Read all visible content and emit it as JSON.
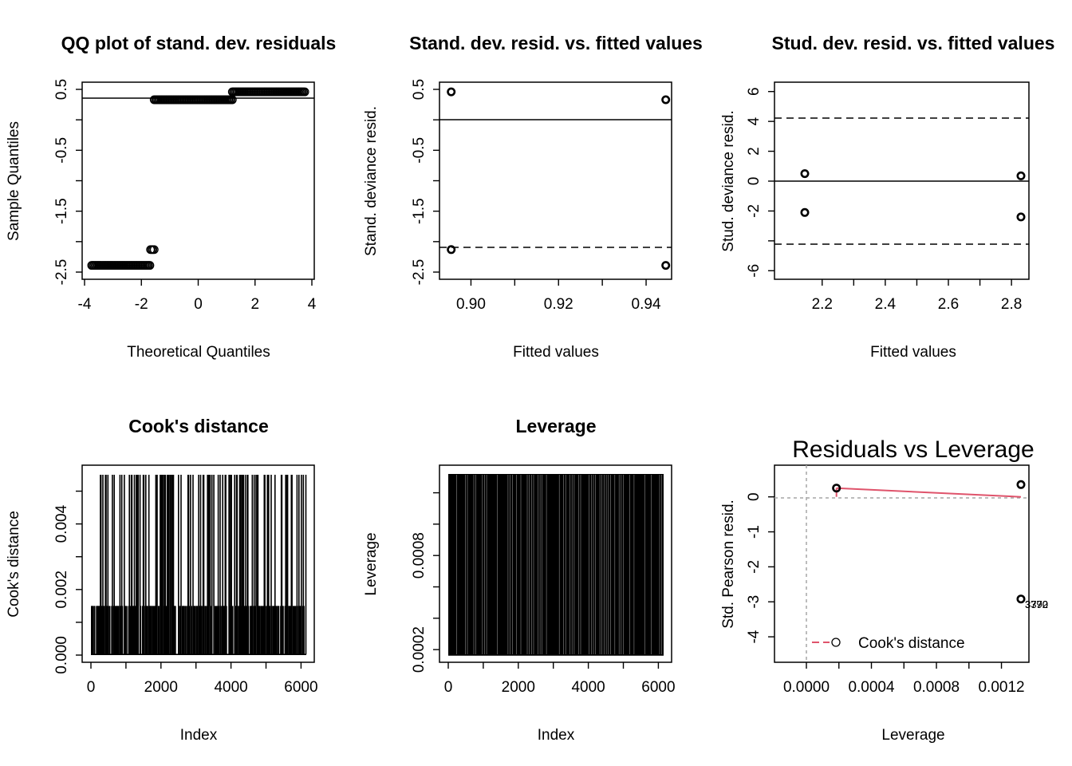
{
  "chart_data": [
    {
      "type": "scatter",
      "title": "QQ plot of stand. dev. residuals",
      "xlabel": "Theoretical Quantiles",
      "ylabel": "Sample Quantiles",
      "xlim": [
        -4,
        4
      ],
      "ylim": [
        -2.5,
        0.5
      ],
      "x_ticks": [
        -4,
        -2,
        0,
        2,
        4
      ],
      "x_tick_labels": [
        "-4",
        "-2",
        "0",
        "2",
        "4"
      ],
      "y_ticks": [
        -2.5,
        -2.0,
        -1.5,
        -1.0,
        -0.5,
        0.0,
        0.5
      ],
      "y_tick_labels": [
        "-2.5",
        "",
        "-1.5",
        "",
        "-0.5",
        "",
        "0.5"
      ],
      "reference_line": {
        "intercept": 0.33,
        "slope": 0.0
      },
      "points": [
        {
          "x_from": -3.75,
          "x_to": -1.7,
          "y": -2.39
        },
        {
          "x_from": -1.68,
          "x_to": -1.55,
          "y": -2.13
        },
        {
          "x_from": -1.55,
          "x_to": 1.2,
          "y": 0.33
        },
        {
          "x_from": 1.2,
          "x_to": 3.75,
          "y": 0.46
        }
      ]
    },
    {
      "type": "scatter",
      "title": "Stand. dev. resid. vs. fitted values",
      "xlabel": "Fitted values",
      "ylabel": "Stand. deviance resid.",
      "xlim": [
        0.895,
        0.944
      ],
      "ylim": [
        -2.5,
        0.5
      ],
      "x_ticks": [
        0.9,
        0.91,
        0.92,
        0.93,
        0.94
      ],
      "x_tick_labels": [
        "0.90",
        "",
        "0.92",
        "",
        "0.94"
      ],
      "y_ticks": [
        -2.5,
        -2.0,
        -1.5,
        -1.0,
        -0.5,
        0.0,
        0.5
      ],
      "y_tick_labels": [
        "-2.5",
        "",
        "-1.5",
        "",
        "-0.5",
        "",
        "0.5"
      ],
      "hlines": [
        {
          "y": 0,
          "style": "solid"
        },
        {
          "y": -2,
          "style": "dashed"
        }
      ],
      "points": [
        {
          "x": 0.8955,
          "y": 0.46
        },
        {
          "x": 0.8955,
          "y": -2.13
        },
        {
          "x": 0.9445,
          "y": 0.33
        },
        {
          "x": 0.9445,
          "y": -2.39
        }
      ]
    },
    {
      "type": "scatter",
      "title": "Stud. dev. resid. vs. fitted values",
      "xlabel": "Fitted values",
      "ylabel": "Stud. deviance resid.",
      "xlim": [
        2.15,
        2.83
      ],
      "ylim": [
        -7,
        7
      ],
      "x_ticks": [
        2.2,
        2.3,
        2.4,
        2.5,
        2.6,
        2.7,
        2.8
      ],
      "x_tick_labels": [
        "2.2",
        "",
        "2.4",
        "",
        "2.6",
        "",
        "2.8"
      ],
      "y_ticks": [
        -6,
        -4,
        -2,
        0,
        2,
        4,
        6
      ],
      "y_tick_labels": [
        "-6",
        "",
        "-2",
        "0",
        "2",
        "4",
        "6"
      ],
      "hlines": [
        {
          "y": 0,
          "style": "solid"
        },
        {
          "y": 4.5,
          "style": "dashed"
        },
        {
          "y": -4.5,
          "style": "dashed"
        }
      ],
      "points": [
        {
          "x": 2.145,
          "y": 0.5
        },
        {
          "x": 2.145,
          "y": -2.1
        },
        {
          "x": 2.83,
          "y": 0.35
        },
        {
          "x": 2.83,
          "y": -2.4
        }
      ]
    },
    {
      "type": "bar",
      "title": "Cook's distance",
      "xlabel": "Index",
      "ylabel": "Cook's distance",
      "xlim": [
        0,
        6150
      ],
      "ylim": [
        0,
        0.0055
      ],
      "x_ticks": [
        0,
        1000,
        2000,
        3000,
        4000,
        5000,
        6000
      ],
      "x_tick_labels": [
        "0",
        "",
        "2000",
        "",
        "4000",
        "",
        "6000"
      ],
      "y_ticks": [
        0,
        0.001,
        0.002,
        0.003,
        0.004,
        0.005
      ],
      "y_tick_labels": [
        "0.000",
        "",
        "0.002",
        "",
        "0.004",
        ""
      ],
      "levels": [
        2e-05,
        0.0015,
        0.0055
      ],
      "n": 6150
    },
    {
      "type": "bar",
      "title": "Leverage",
      "xlabel": "Index",
      "ylabel": "Leverage",
      "xlim": [
        0,
        6150
      ],
      "ylim": [
        0.000165,
        0.00132
      ],
      "x_ticks": [
        0,
        1000,
        2000,
        3000,
        4000,
        5000,
        6000
      ],
      "x_tick_labels": [
        "0",
        "",
        "2000",
        "",
        "4000",
        "",
        "6000"
      ],
      "y_ticks": [
        0.0002,
        0.0004,
        0.0006,
        0.0008,
        0.001,
        0.0012
      ],
      "y_tick_labels": [
        "0.0002",
        "",
        "",
        "0.0008",
        "",
        ""
      ],
      "levels": [
        0.000165,
        0.00132
      ],
      "n": 6150
    },
    {
      "type": "scatter",
      "title": "Residuals vs Leverage",
      "xlabel": "Leverage",
      "ylabel": "Std. Pearson resid.",
      "xlim": [
        0,
        0.00132
      ],
      "ylim": [
        -4.5,
        0.7
      ],
      "x_ticks": [
        0,
        0.0002,
        0.0004,
        0.0006,
        0.0008,
        0.001,
        0.0012
      ],
      "x_tick_labels": [
        "0.0000",
        "",
        "0.0004",
        "",
        "0.0008",
        "",
        "0.0012"
      ],
      "y_ticks": [
        -4,
        -3,
        -2,
        -1,
        0
      ],
      "y_tick_labels": [
        "-4",
        "-3",
        "-2",
        "-1",
        "0"
      ],
      "points": [
        {
          "x": 0.000185,
          "y": 0.25
        },
        {
          "x": 0.00132,
          "y": 0.35
        },
        {
          "x": 0.00132,
          "y": -2.92
        }
      ],
      "smoother": [
        [
          0.000185,
          0.25
        ],
        [
          0.00132,
          0.0
        ]
      ],
      "point_labels": [
        "3372",
        "3770",
        "3790"
      ],
      "legend": {
        "label": "Cook's distance",
        "position": "bottom-left"
      }
    }
  ]
}
